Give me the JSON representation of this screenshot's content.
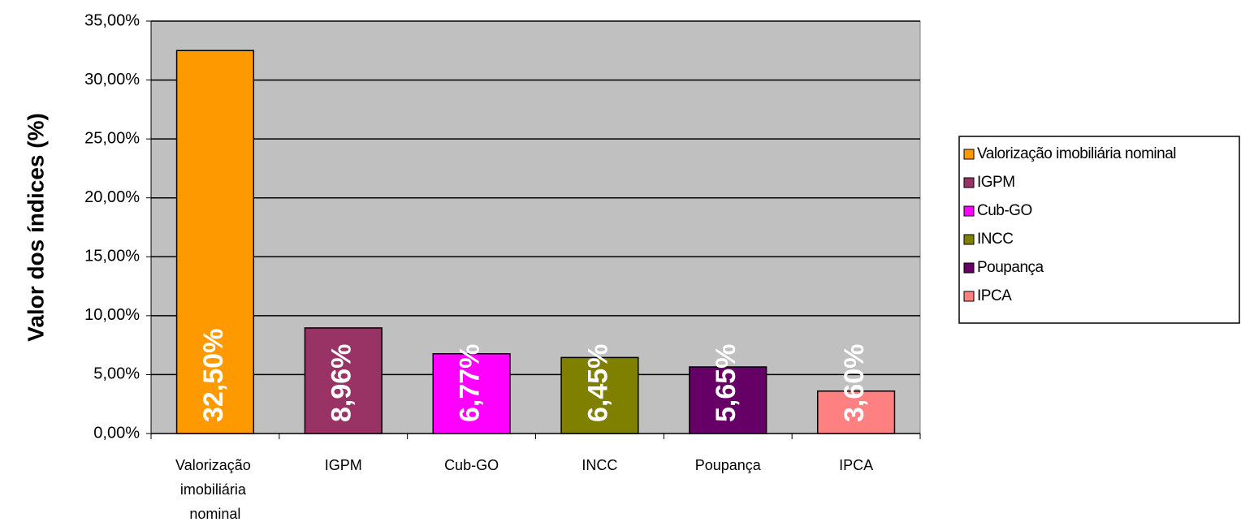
{
  "chart_data": {
    "type": "bar",
    "y_label": "Valor dos índices (%)",
    "categories": [
      "Valorização imobiliária nominal",
      "IGPM",
      "Cub-GO",
      "INCC",
      "Poupança",
      "IPCA"
    ],
    "values": [
      32.5,
      8.96,
      6.77,
      6.45,
      5.65,
      3.6
    ],
    "value_labels": [
      "32,50%",
      "8,96%",
      "6,77%",
      "6,45%",
      "5,65%",
      "3,60%"
    ],
    "colors": [
      "#FF9900",
      "#993366",
      "#FF00FF",
      "#808000",
      "#660066",
      "#FF8080"
    ],
    "ylim": [
      0,
      35
    ],
    "yticks": [
      {
        "value": 0,
        "label": "0,00%"
      },
      {
        "value": 5,
        "label": "5,00%"
      },
      {
        "value": 10,
        "label": "10,00%"
      },
      {
        "value": 15,
        "label": "15,00%"
      },
      {
        "value": 20,
        "label": "20,00%"
      },
      {
        "value": 25,
        "label": "25,00%"
      },
      {
        "value": 30,
        "label": "30,00%"
      },
      {
        "value": 35,
        "label": "35,00%"
      }
    ],
    "grid": true,
    "legend": "right"
  }
}
